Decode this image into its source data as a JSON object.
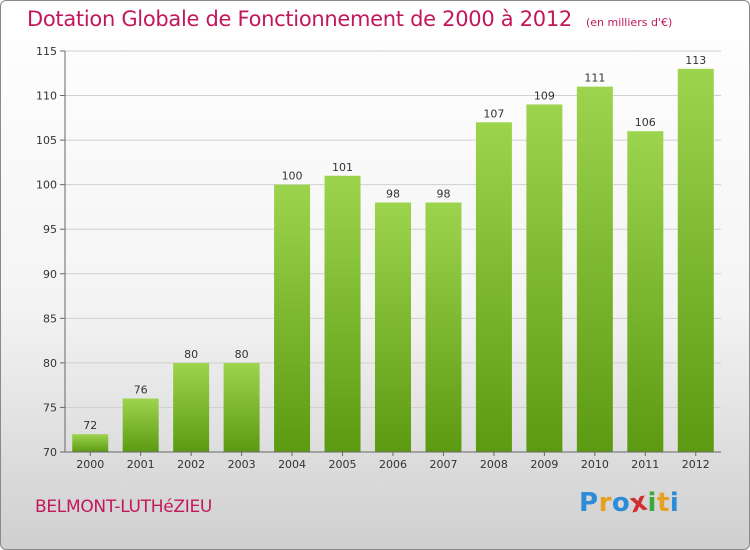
{
  "header": {
    "title": "Dotation Globale de Fonctionnement de 2000 à 2012",
    "unit": "(en milliers d'€)"
  },
  "footer": {
    "commune": "BELMONT-LUTHéZIEU",
    "logo": [
      "P",
      "r",
      "o",
      "x",
      "i",
      "t",
      "i"
    ],
    "logo_colors": [
      "#2e8bd8",
      "#e8a020",
      "#2e8bd8",
      "#d03030",
      "#3aa83a",
      "#e8a020",
      "#2e8bd8"
    ]
  },
  "chart_data": {
    "type": "bar",
    "categories": [
      "2000",
      "2001",
      "2002",
      "2003",
      "2004",
      "2005",
      "2006",
      "2007",
      "2008",
      "2009",
      "2010",
      "2011",
      "2012"
    ],
    "values": [
      72,
      76,
      80,
      80,
      100,
      101,
      98,
      98,
      107,
      109,
      111,
      106,
      113
    ],
    "title": "Dotation Globale de Fonctionnement de 2000 à 2012",
    "xlabel": "",
    "ylabel": "",
    "ylim": [
      70,
      115
    ],
    "yticks": [
      70,
      75,
      80,
      85,
      90,
      95,
      100,
      105,
      110,
      115
    ],
    "grid": true,
    "bar_color_top": "#9dd44e",
    "bar_color_bottom": "#5c9a12"
  }
}
